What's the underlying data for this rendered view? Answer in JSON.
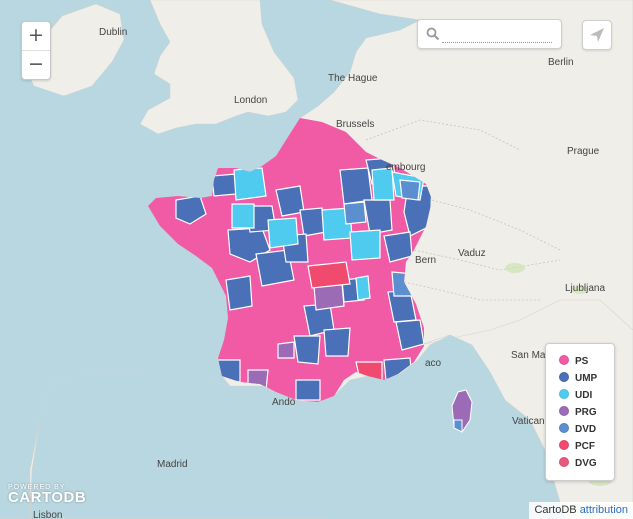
{
  "zoom": {
    "in_label": "+",
    "out_label": "−"
  },
  "search": {
    "placeholder": "",
    "value": ""
  },
  "legend": {
    "items": [
      {
        "label": "PS",
        "color": "#f15ba6"
      },
      {
        "label": "UMP",
        "color": "#4a70b7"
      },
      {
        "label": "UDI",
        "color": "#4ecbee"
      },
      {
        "label": "PRG",
        "color": "#9b6bb5"
      },
      {
        "label": "DVD",
        "color": "#5b8fd0"
      },
      {
        "label": "PCF",
        "color": "#f04b6e"
      },
      {
        "label": "DVG",
        "color": "#e8587e"
      }
    ]
  },
  "cities": {
    "dublin": "Dublin",
    "london": "London",
    "the_hague": "The Hague",
    "brussels": "Brussels",
    "luxembourg": "embourg",
    "berlin": "Berlin",
    "prague": "Prague",
    "vaduz": "Vaduz",
    "bern": "Bern",
    "ljubljana": "Ljubljana",
    "san_marino": "San Ma",
    "monaco": "aco",
    "andorra": "Ando",
    "vatican": "Vatican",
    "madrid": "Madrid",
    "lisbon": "Lisbon"
  },
  "logo": {
    "small": "POWERED BY",
    "big": "CARTODB"
  },
  "attribution": {
    "brand": "CartoDB",
    "link": "attribution"
  }
}
